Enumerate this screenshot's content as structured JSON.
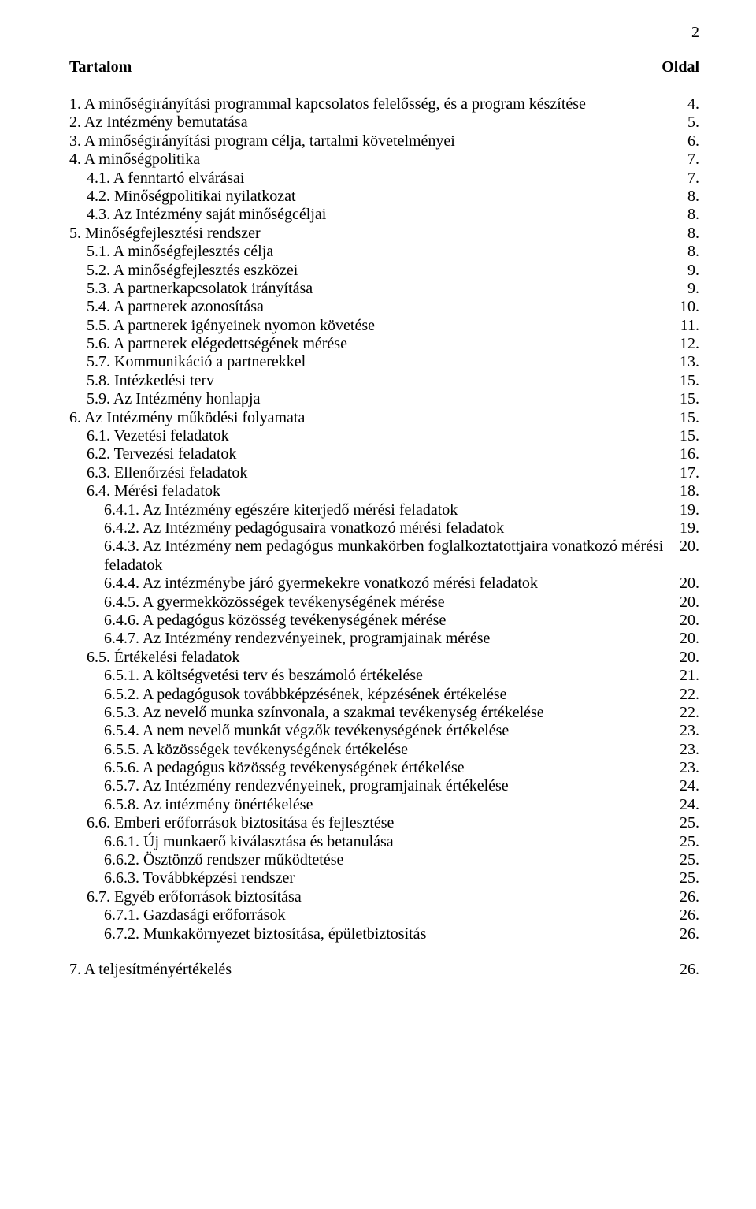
{
  "pageNumber": "2",
  "header": {
    "left": "Tartalom",
    "right": "Oldal"
  },
  "entries": [
    {
      "label": "1. A minőségirányítási programmal kapcsolatos felelősség, és a program készítése",
      "page": "4.",
      "indent": 0
    },
    {
      "label": "2. Az Intézmény bemutatása",
      "page": "5.",
      "indent": 0
    },
    {
      "label": "3. A minőségirányítási program célja, tartalmi követelményei",
      "page": "6.",
      "indent": 0
    },
    {
      "label": "4. A minőségpolitika",
      "page": "7.",
      "indent": 0
    },
    {
      "label": "4.1. A fenntartó elvárásai",
      "page": "7.",
      "indent": 1
    },
    {
      "label": "4.2. Minőségpolitikai nyilatkozat",
      "page": "8.",
      "indent": 1
    },
    {
      "label": "4.3. Az Intézmény saját minőségcéljai",
      "page": "8.",
      "indent": 1
    },
    {
      "label": "5. Minőségfejlesztési rendszer",
      "page": "8.",
      "indent": 0
    },
    {
      "label": "5.1. A minőségfejlesztés célja",
      "page": "8.",
      "indent": 1
    },
    {
      "label": "5.2. A minőségfejlesztés eszközei",
      "page": "9.",
      "indent": 1
    },
    {
      "label": "5.3. A partnerkapcsolatok irányítása",
      "page": "9.",
      "indent": 1
    },
    {
      "label": "5.4. A partnerek azonosítása",
      "page": "10.",
      "indent": 1
    },
    {
      "label": "5.5. A partnerek igényeinek nyomon követése",
      "page": "11.",
      "indent": 1
    },
    {
      "label": "5.6. A partnerek elégedettségének mérése",
      "page": "12.",
      "indent": 1
    },
    {
      "label": "5.7. Kommunikáció a partnerekkel",
      "page": "13.",
      "indent": 1
    },
    {
      "label": "5.8. Intézkedési terv",
      "page": "15.",
      "indent": 1
    },
    {
      "label": "5.9. Az Intézmény honlapja",
      "page": "15.",
      "indent": 1
    },
    {
      "label": "6. Az Intézmény működési folyamata",
      "page": "15.",
      "indent": 0
    },
    {
      "label": "6.1. Vezetési feladatok",
      "page": "15.",
      "indent": 1
    },
    {
      "label": "6.2. Tervezési feladatok",
      "page": "16.",
      "indent": 1
    },
    {
      "label": "6.3. Ellenőrzési feladatok",
      "page": "17.",
      "indent": 1
    },
    {
      "label": "6.4. Mérési feladatok",
      "page": "18.",
      "indent": 1
    },
    {
      "label": "6.4.1. Az Intézmény egészére kiterjedő mérési feladatok",
      "page": "19.",
      "indent": 2
    },
    {
      "label": "6.4.2. Az Intézmény pedagógusaira vonatkozó mérési feladatok",
      "page": "19.",
      "indent": 2
    },
    {
      "label": "6.4.3. Az Intézmény nem pedagógus munkakörben foglalkoztatottjaira vonatkozó mérési feladatok",
      "page": "20.",
      "indent": 2,
      "wrapped": true
    },
    {
      "label": "6.4.4. Az intézménybe járó gyermekekre vonatkozó mérési feladatok",
      "page": "20.",
      "indent": 2
    },
    {
      "label": "6.4.5. A gyermekközösségek tevékenységének mérése",
      "page": "20.",
      "indent": 2
    },
    {
      "label": "6.4.6. A pedagógus közösség tevékenységének mérése",
      "page": "20.",
      "indent": 2
    },
    {
      "label": "6.4.7. Az Intézmény rendezvényeinek, programjainak mérése",
      "page": "20.",
      "indent": 2
    },
    {
      "label": "6.5. Értékelési feladatok",
      "page": "20.",
      "indent": 3
    },
    {
      "label": "6.5.1. A költségvetési terv és beszámoló értékelése",
      "page": "21.",
      "indent": 2
    },
    {
      "label": "6.5.2. A pedagógusok továbbképzésének, képzésének értékelése",
      "page": "22.",
      "indent": 2
    },
    {
      "label": "6.5.3. Az nevelő munka színvonala, a szakmai tevékenység értékelése",
      "page": "22.",
      "indent": 2
    },
    {
      "label": "6.5.4. A nem nevelő munkát végzők tevékenységének értékelése",
      "page": "23.",
      "indent": 2
    },
    {
      "label": "6.5.5. A közösségek tevékenységének értékelése",
      "page": "23.",
      "indent": 2
    },
    {
      "label": "6.5.6. A pedagógus közösség tevékenységének értékelése",
      "page": "23.",
      "indent": 2
    },
    {
      "label": "6.5.7. Az Intézmény rendezvényeinek, programjainak értékelése",
      "page": "24.",
      "indent": 2
    },
    {
      "label": "6.5.8. Az intézmény önértékelése",
      "page": "24.",
      "indent": 2
    },
    {
      "label": "6.6. Emberi erőforrások biztosítása és fejlesztése",
      "page": "25.",
      "indent": 3
    },
    {
      "label": "6.6.1. Új munkaerő kiválasztása és betanulása",
      "page": "25.",
      "indent": 2
    },
    {
      "label": "6.6.2. Ösztönző rendszer működtetése",
      "page": "25.",
      "indent": 2
    },
    {
      "label": "6.6.3. Továbbképzési rendszer",
      "page": "25.",
      "indent": 2
    },
    {
      "label": "6.7. Egyéb erőforrások biztosítása",
      "page": "26.",
      "indent": 3
    },
    {
      "label": "6.7.1. Gazdasági erőforrások",
      "page": "26.",
      "indent": 2
    },
    {
      "label": "6.7.2.  Munkakörnyezet biztosítása, épületbiztosítás",
      "page": "26.",
      "indent": 2
    }
  ],
  "footer": {
    "label": "7. A teljesítményértékelés",
    "page": "26.",
    "indent": 0
  }
}
